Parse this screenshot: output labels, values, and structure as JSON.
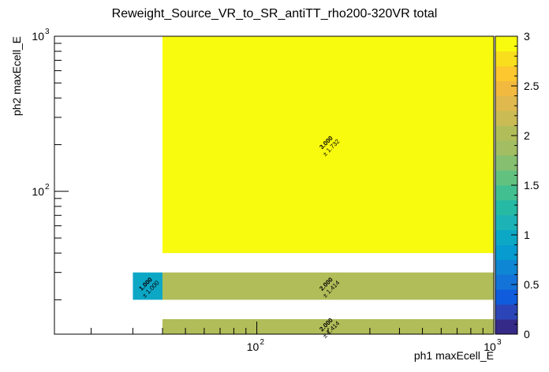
{
  "chart_data": {
    "type": "heatmap",
    "title": "Reweight_Source_VR_to_SR_antiTT_rho200-320VR total",
    "xlabel": "ph1 maxEcell_E",
    "ylabel": "ph2 maxEcell_E",
    "x_scale": "log",
    "y_scale": "log",
    "xlim": [
      14,
      1000
    ],
    "ylim": [
      12,
      1000
    ],
    "zlim": [
      0,
      3
    ],
    "x_ticks": [
      {
        "value": 100,
        "label": "10",
        "exp": "2"
      },
      {
        "value": 1000,
        "label": "10",
        "exp": "3"
      }
    ],
    "y_ticks": [
      {
        "value": 100,
        "label": "10",
        "exp": "2"
      },
      {
        "value": 1000,
        "label": "10",
        "exp": "3"
      }
    ],
    "z_ticks": [
      "0",
      "0.5",
      "1",
      "1.5",
      "2",
      "2.5",
      "3"
    ],
    "cells": [
      {
        "x0": 40,
        "x1": 1000,
        "y0": 40,
        "y1": 1000,
        "value": 3.0,
        "text": "3.000",
        "error": "± 1.732"
      },
      {
        "x0": 30,
        "x1": 40,
        "y0": 20,
        "y1": 30,
        "value": 1.0,
        "text": "1.000",
        "error": "± 1.000"
      },
      {
        "x0": 40,
        "x1": 1000,
        "y0": 20,
        "y1": 30,
        "value": 2.0,
        "text": "2.000",
        "error": "± 1.414"
      },
      {
        "x0": 40,
        "x1": 1000,
        "y0": 12,
        "y1": 15,
        "value": 2.0,
        "text": "2.000",
        "error": "± 1.414"
      }
    ],
    "palette": [
      "#352a87",
      "#2b45b8",
      "#0f5cdd",
      "#1373d8",
      "#0e86d3",
      "#079bcf",
      "#0da7c6",
      "#1db2b5",
      "#26b9a4",
      "#42bf91",
      "#63c17f",
      "#86bf70",
      "#a2bd62",
      "#b1bd59",
      "#cbbb54",
      "#dfb84e",
      "#f2b93f",
      "#fcc72f",
      "#f8de1d",
      "#f9fb0e"
    ],
    "grid": false,
    "legend": "color bar right"
  }
}
